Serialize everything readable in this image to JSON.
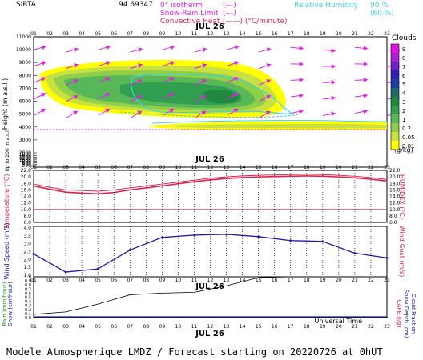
{
  "header": {
    "station": "SIRTA",
    "coords": "94.69347",
    "legend_isotherm": "0° isotherm",
    "legend_isotherm_sym": "(---)",
    "legend_snowrain": "Snow-Rain Limit",
    "legend_snowrain_sym": "(---)",
    "legend_convective": "Convective Heat",
    "legend_convective_sym": "(——) (°C/minute)",
    "legend_rh": "Relative Humidity",
    "legend_rh_90": "90 %",
    "legend_rh_60": "(60 %)"
  },
  "footer": {
    "title": "Modele Atmospherique LMDZ / Forecast starting on 20220726 at 0hUT",
    "universal_time": "Universal Time"
  },
  "colors": {
    "temperature": "#e0204a",
    "humidex": "#e0204a",
    "wind": "#1a1aa8",
    "wind_arrow": "#e020e0",
    "rain": "#000000",
    "isotherm": "#e020e0",
    "rh": "#40d0e0",
    "cloud_scale": [
      "#ffff00",
      "#c8e040",
      "#90d048",
      "#58b858",
      "#30a050",
      "#208840",
      "#206868",
      "#2040a0",
      "#3020b0",
      "#7020c0",
      "#b020d0",
      "#e010e0"
    ]
  },
  "chart_data": [
    {
      "type": "heatmap",
      "name": "clouds",
      "date_label": "JUL 26",
      "x_ticks": [
        "01",
        "02",
        "03",
        "04",
        "05",
        "06",
        "07",
        "08",
        "09",
        "10",
        "11",
        "12",
        "13",
        "14",
        "15",
        "16",
        "17",
        "18",
        "19",
        "20",
        "21",
        "22",
        "23"
      ],
      "y_ticks": [
        11000,
        10000,
        9000,
        8000,
        7000,
        6000,
        5000,
        4000,
        3000,
        2000,
        1800,
        1600,
        1400,
        1200,
        1000,
        800,
        600,
        400,
        200
      ],
      "ylabel": "Height (m a.s.l.)",
      "ylabel2": "Up to 200 m a.s.l.",
      "legend_title": "Clouds",
      "legend_unit": "(g/kg)",
      "legend_values": [
        "9",
        "8",
        "7",
        "6",
        "5",
        "4",
        "3",
        "2",
        "1",
        "0.2",
        "0.05",
        "0.01"
      ],
      "isotherm_height": 3800
    },
    {
      "type": "line",
      "name": "temperature",
      "date_label": "JUL 26",
      "x": [
        1,
        2,
        3,
        4,
        5,
        6,
        7,
        8,
        9,
        10,
        11,
        12,
        13,
        14,
        15,
        16,
        17,
        18,
        19,
        20,
        21,
        22,
        23
      ],
      "series": [
        {
          "name": "Temperature",
          "values": [
            17.2,
            16.2,
            15.3,
            15.0,
            14.8,
            15.2,
            16.0,
            16.6,
            17.2,
            17.9,
            18.5,
            19.1,
            19.5,
            19.8,
            20.0,
            20.1,
            20.2,
            20.3,
            20.2,
            20.0,
            19.7,
            19.3,
            18.7
          ]
        },
        {
          "name": "Humidex",
          "values": [
            17.8,
            16.8,
            16.0,
            15.8,
            15.6,
            16.0,
            16.6,
            17.2,
            17.8,
            18.4,
            19.0,
            19.6,
            20.0,
            20.3,
            20.5,
            20.6,
            20.7,
            20.8,
            20.7,
            20.5,
            20.2,
            19.8,
            19.2
          ]
        }
      ],
      "y_ticks": [
        "22.0",
        "20.0",
        "18.0",
        "16.0",
        "14.0",
        "12.0",
        "10.0",
        "8.0",
        "6.0"
      ],
      "ylim": [
        6,
        22
      ],
      "ylabel": "Temperature (°C)",
      "ylabel2": "HUMIDEX (°C)",
      "reference_line": 10
    },
    {
      "type": "line",
      "name": "wind",
      "x": [
        1,
        3,
        5,
        7,
        9,
        11,
        13,
        15,
        17,
        19,
        21,
        23
      ],
      "series": [
        {
          "name": "Wind Speed",
          "values": [
            2.35,
            1.2,
            1.4,
            2.6,
            3.4,
            3.55,
            3.6,
            3.45,
            3.2,
            3.15,
            2.4,
            2.1
          ]
        }
      ],
      "y_ticks": [
        "4.0",
        "3.5",
        "3.0",
        "2.5",
        "2.0",
        "1.5",
        "1.0"
      ],
      "ylim": [
        1,
        4
      ],
      "ylabel": "Wind Speed (m/s)",
      "ylabel2": "Wind Gust (m/s)"
    },
    {
      "type": "line",
      "name": "precipitation",
      "date_label": "JUL 26",
      "x_ticks": [
        "01",
        "02",
        "03",
        "04",
        "05",
        "06",
        "07",
        "08",
        "09",
        "10",
        "11",
        "12",
        "13",
        "14",
        "15",
        "16",
        "17",
        "18",
        "19",
        "20",
        "21",
        "22",
        "23"
      ],
      "x": [
        1,
        3,
        5,
        7,
        9,
        11,
        13,
        15,
        17,
        19,
        21,
        23
      ],
      "series": [
        {
          "name": "Rain",
          "values": [
            0.08,
            0.14,
            0.33,
            0.56,
            0.6,
            0.62,
            0.78,
            0.98,
            1.0,
            1.0,
            1.0,
            1.0
          ]
        }
      ],
      "y_ticks": [
        "1.0",
        "0.9",
        "0.8",
        "0.7",
        "0.6",
        "0.5",
        "0.4",
        "0.3",
        "0.2",
        "0.1",
        "0.0"
      ],
      "ylim": [
        0,
        1
      ],
      "ylabel": "Rain (mm/hour)",
      "ylabel_b": "Snow (cm/hour)",
      "ylabel2": "CAPE (J/g)",
      "ylabel2_b": "Snow Depth (cm)",
      "ylabel2_c": "Cloud Fraction"
    }
  ]
}
